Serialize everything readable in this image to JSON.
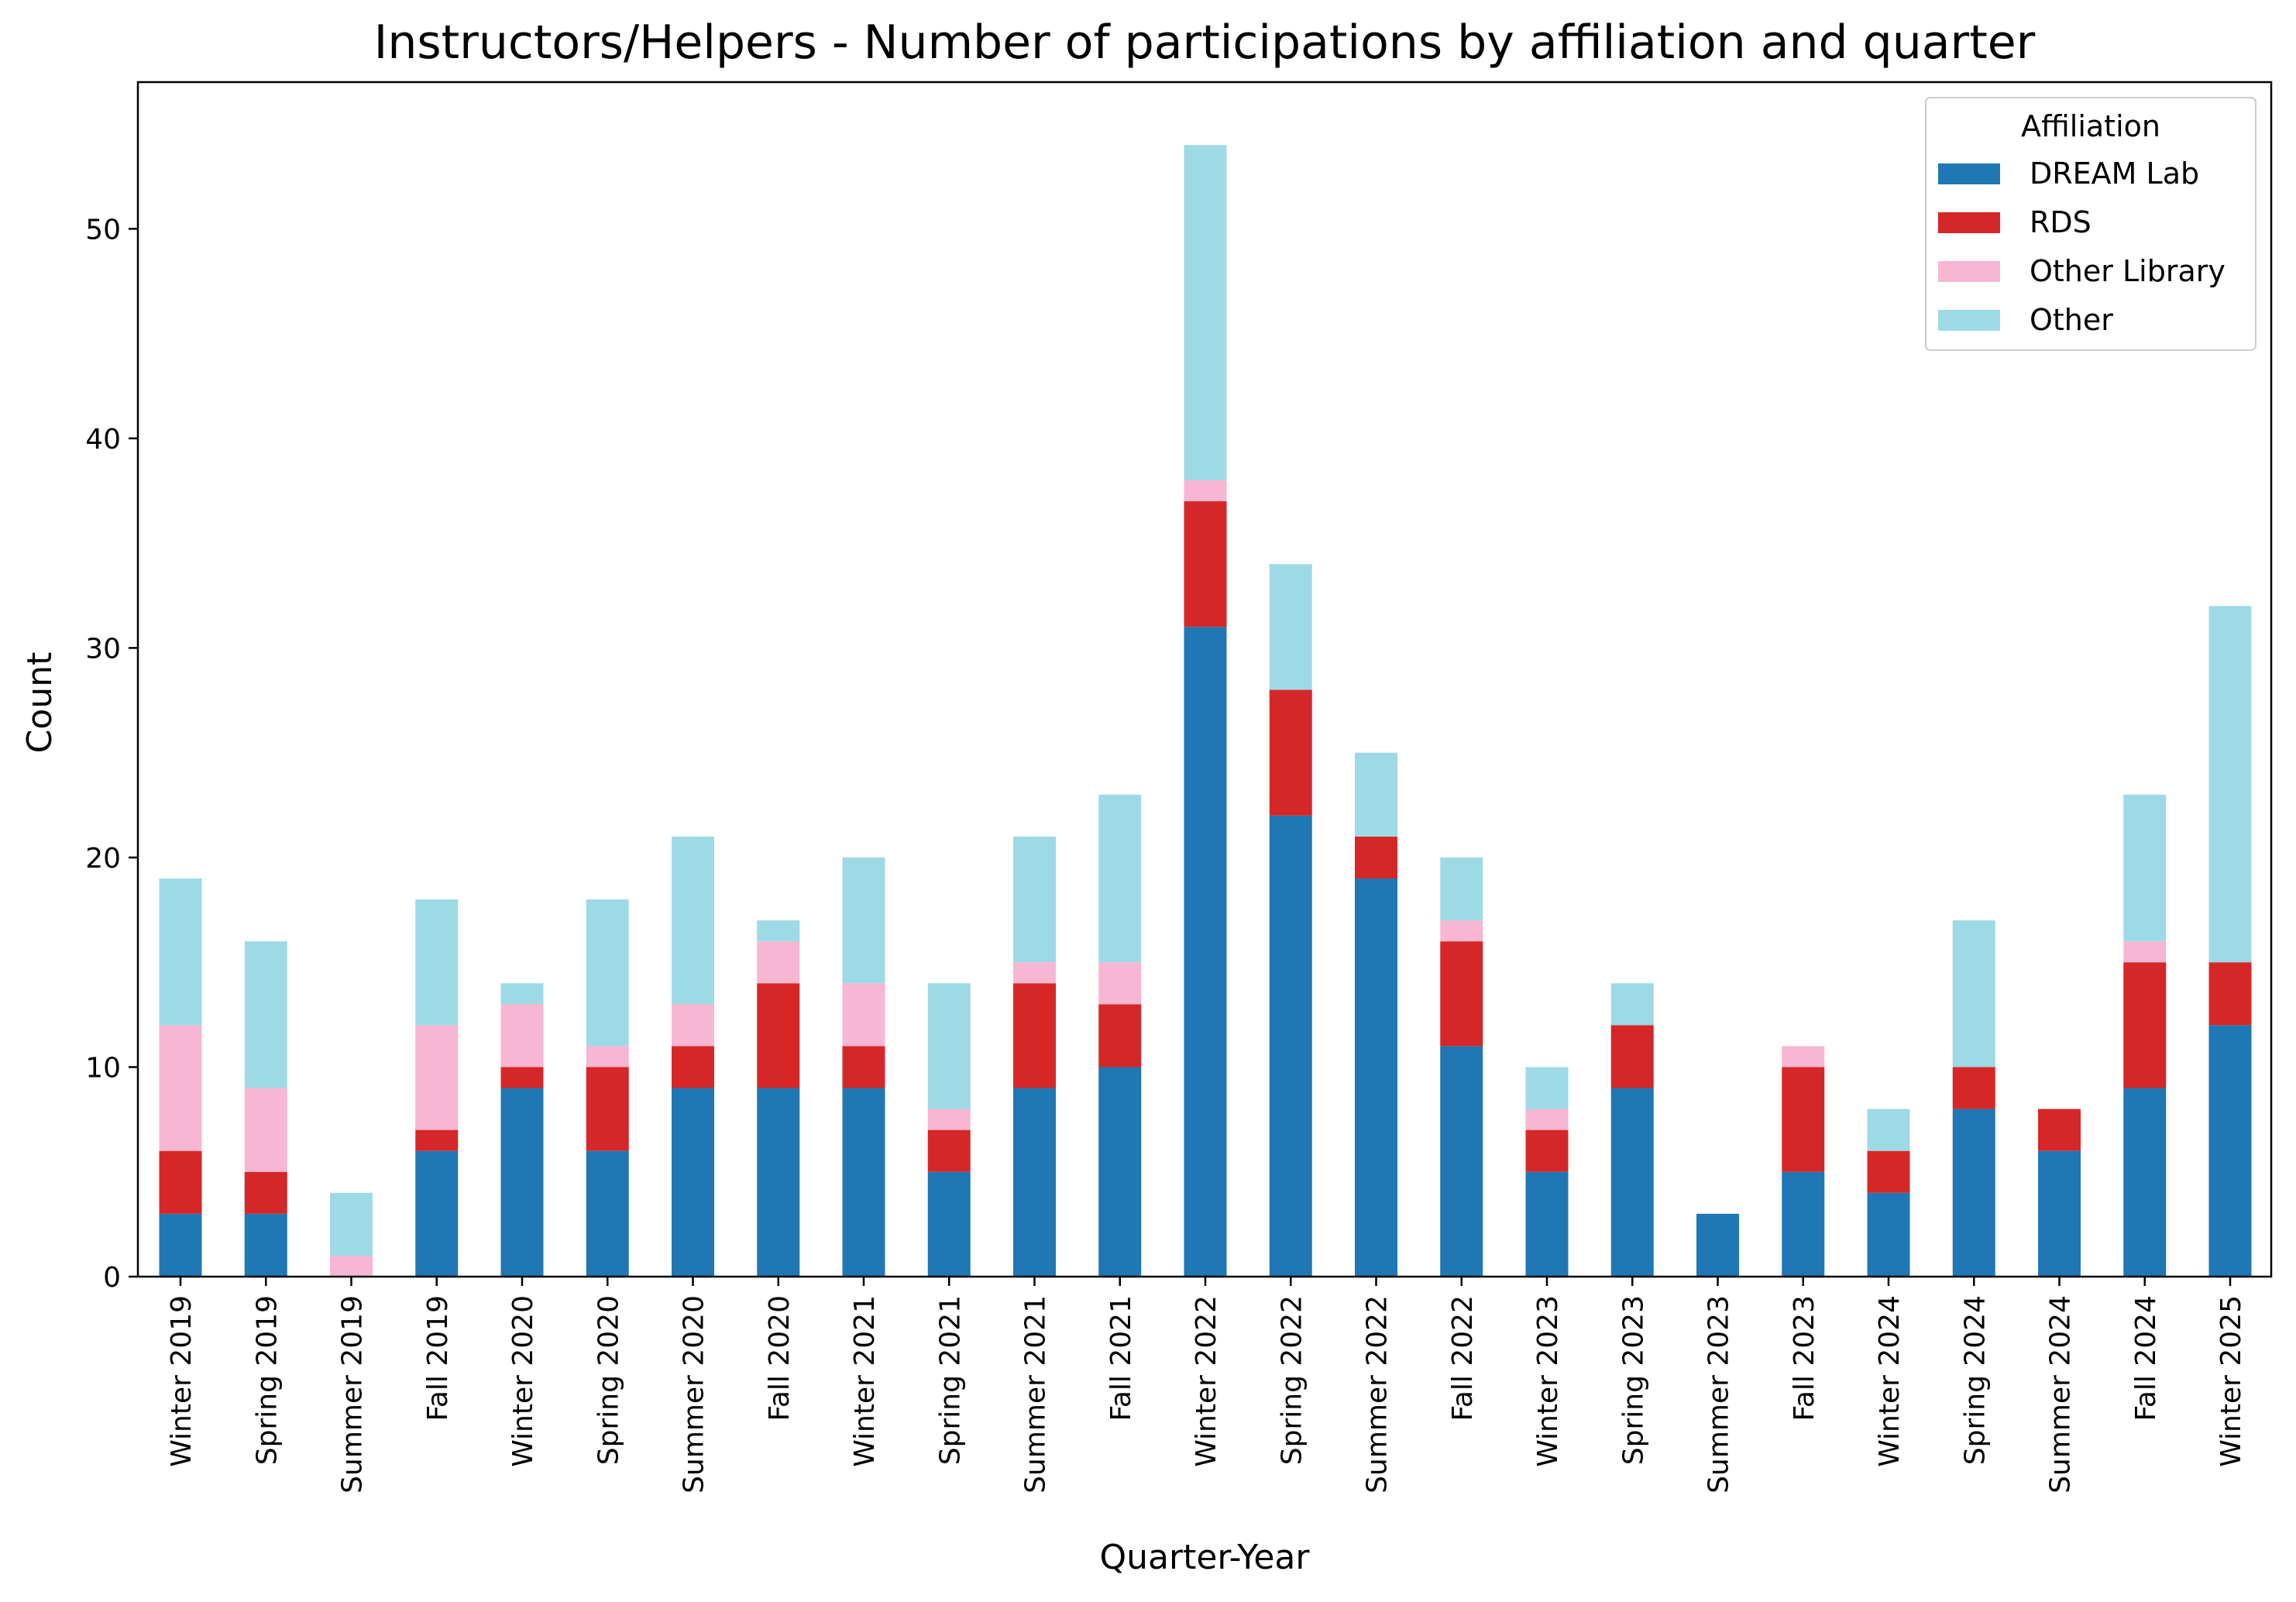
{
  "chart_data": {
    "type": "bar",
    "stacked": true,
    "title": "Instructors/Helpers - Number of participations by affiliation and quarter",
    "xlabel": "Quarter-Year",
    "ylabel": "Count",
    "ylim": [
      0,
      57
    ],
    "yticks": [
      0,
      10,
      20,
      30,
      40,
      50
    ],
    "grid": false,
    "legend": {
      "title": "Affiliation",
      "placement": "top-right"
    },
    "categories": [
      "Winter 2019",
      "Spring 2019",
      "Summer 2019",
      "Fall 2019",
      "Winter 2020",
      "Spring 2020",
      "Summer 2020",
      "Fall 2020",
      "Winter 2021",
      "Spring 2021",
      "Summer 2021",
      "Fall 2021",
      "Winter 2022",
      "Spring 2022",
      "Summer 2022",
      "Fall 2022",
      "Winter 2023",
      "Spring 2023",
      "Summer 2023",
      "Fall 2023",
      "Winter 2024",
      "Spring 2024",
      "Summer 2024",
      "Fall 2024",
      "Winter 2025"
    ],
    "series": [
      {
        "name": "DREAM Lab",
        "color": "#1f77b4",
        "values": [
          3,
          3,
          0,
          6,
          9,
          6,
          9,
          9,
          9,
          5,
          9,
          10,
          31,
          22,
          19,
          11,
          5,
          9,
          3,
          5,
          4,
          8,
          6,
          9,
          12
        ]
      },
      {
        "name": "RDS",
        "color": "#d62728",
        "values": [
          3,
          2,
          0,
          1,
          1,
          4,
          2,
          5,
          2,
          2,
          5,
          3,
          6,
          6,
          2,
          5,
          2,
          3,
          0,
          5,
          2,
          2,
          2,
          6,
          3
        ]
      },
      {
        "name": "Other Library",
        "color": "#f7b6d2",
        "values": [
          6,
          4,
          1,
          5,
          3,
          1,
          2,
          2,
          3,
          1,
          1,
          2,
          1,
          0,
          0,
          1,
          1,
          0,
          0,
          1,
          0,
          0,
          0,
          1,
          0
        ]
      },
      {
        "name": "Other",
        "color": "#9edae5",
        "values": [
          7,
          7,
          3,
          6,
          1,
          7,
          8,
          1,
          6,
          6,
          6,
          8,
          16,
          6,
          4,
          3,
          2,
          2,
          0,
          0,
          2,
          7,
          0,
          7,
          17
        ]
      }
    ]
  }
}
